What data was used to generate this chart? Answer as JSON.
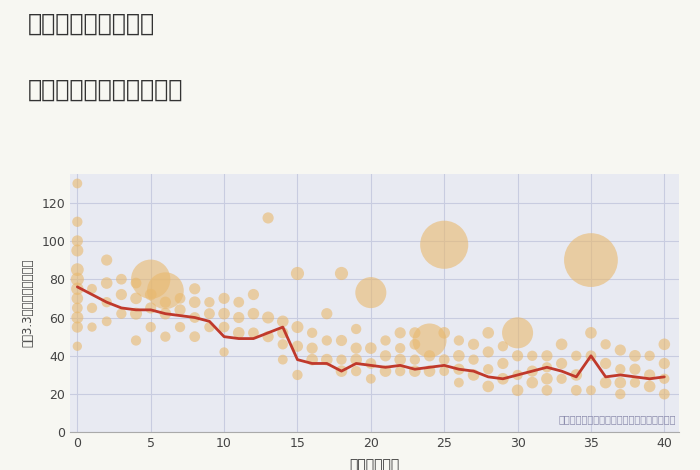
{
  "title_line1": "奈良県近鉄郡山駅の",
  "title_line2": "築年数別中古戸建て価格",
  "xlabel": "築年数（年）",
  "ylabel": "坪（3.3㎡）単価（万円）",
  "annotation": "円の大きさは、取引のあった物件面積を示す",
  "fig_bg_color": "#f7f7f2",
  "plot_bg_color": "#e8eaf2",
  "bubble_color": "#e8b86d",
  "bubble_alpha": 0.6,
  "line_color": "#c0392b",
  "line_width": 2.0,
  "xlim": [
    -0.5,
    41
  ],
  "ylim": [
    0,
    135
  ],
  "yticks": [
    0,
    20,
    40,
    60,
    80,
    100,
    120
  ],
  "xticks": [
    0,
    5,
    10,
    15,
    20,
    25,
    30,
    35,
    40
  ],
  "scatter_x": [
    0,
    0,
    0,
    0,
    0,
    0,
    0,
    0,
    0,
    0,
    0,
    0,
    1,
    1,
    1,
    2,
    2,
    2,
    2,
    3,
    3,
    3,
    4,
    4,
    4,
    4,
    5,
    5,
    5,
    5,
    6,
    6,
    6,
    6,
    7,
    7,
    7,
    8,
    8,
    8,
    8,
    9,
    9,
    9,
    10,
    10,
    10,
    10,
    11,
    11,
    11,
    12,
    12,
    12,
    13,
    13,
    13,
    14,
    14,
    14,
    14,
    15,
    15,
    15,
    15,
    16,
    16,
    16,
    17,
    17,
    17,
    18,
    18,
    18,
    18,
    19,
    19,
    19,
    19,
    20,
    20,
    20,
    20,
    21,
    21,
    21,
    22,
    22,
    22,
    22,
    23,
    23,
    23,
    23,
    24,
    24,
    24,
    25,
    25,
    25,
    25,
    26,
    26,
    26,
    26,
    27,
    27,
    27,
    28,
    28,
    28,
    28,
    29,
    29,
    29,
    30,
    30,
    30,
    30,
    31,
    31,
    31,
    32,
    32,
    32,
    32,
    33,
    33,
    33,
    34,
    34,
    34,
    35,
    35,
    35,
    35,
    36,
    36,
    36,
    37,
    37,
    37,
    37,
    38,
    38,
    38,
    39,
    39,
    39,
    40,
    40,
    40,
    40
  ],
  "scatter_y": [
    130,
    110,
    100,
    95,
    85,
    80,
    75,
    70,
    65,
    60,
    55,
    45,
    75,
    65,
    55,
    90,
    78,
    68,
    58,
    80,
    72,
    62,
    78,
    70,
    62,
    48,
    80,
    72,
    65,
    55,
    74,
    68,
    62,
    50,
    70,
    64,
    55,
    75,
    68,
    60,
    50,
    68,
    62,
    55,
    70,
    62,
    55,
    42,
    68,
    60,
    52,
    72,
    62,
    52,
    112,
    60,
    50,
    58,
    52,
    46,
    38,
    83,
    55,
    45,
    30,
    52,
    44,
    38,
    62,
    48,
    38,
    83,
    48,
    38,
    32,
    54,
    44,
    38,
    32,
    73,
    44,
    36,
    28,
    48,
    40,
    32,
    52,
    44,
    38,
    32,
    52,
    46,
    38,
    32,
    48,
    40,
    32,
    98,
    52,
    38,
    32,
    48,
    40,
    33,
    26,
    46,
    38,
    30,
    52,
    42,
    33,
    24,
    45,
    36,
    28,
    52,
    40,
    30,
    22,
    40,
    32,
    26,
    40,
    34,
    28,
    22,
    46,
    36,
    28,
    40,
    30,
    22,
    90,
    52,
    40,
    22,
    46,
    36,
    26,
    43,
    33,
    26,
    20,
    40,
    33,
    26,
    40,
    30,
    24,
    46,
    36,
    28,
    20
  ],
  "scatter_size": [
    50,
    55,
    65,
    75,
    85,
    90,
    80,
    70,
    60,
    75,
    65,
    45,
    50,
    55,
    45,
    65,
    70,
    55,
    50,
    60,
    65,
    55,
    60,
    70,
    75,
    55,
    800,
    70,
    65,
    55,
    700,
    65,
    70,
    55,
    60,
    65,
    55,
    65,
    70,
    60,
    60,
    55,
    62,
    55,
    65,
    70,
    60,
    45,
    60,
    65,
    70,
    65,
    70,
    60,
    65,
    75,
    65,
    70,
    65,
    55,
    50,
    90,
    75,
    65,
    55,
    55,
    65,
    70,
    65,
    55,
    70,
    90,
    65,
    55,
    70,
    55,
    65,
    70,
    55,
    500,
    70,
    60,
    50,
    55,
    65,
    70,
    65,
    55,
    70,
    55,
    65,
    60,
    55,
    70,
    600,
    65,
    70,
    1200,
    70,
    60,
    50,
    55,
    70,
    65,
    50,
    65,
    55,
    70,
    70,
    65,
    55,
    70,
    55,
    65,
    70,
    500,
    65,
    55,
    70,
    55,
    65,
    70,
    65,
    55,
    70,
    60,
    70,
    65,
    55,
    55,
    70,
    60,
    1500,
    70,
    60,
    50,
    55,
    65,
    70,
    65,
    55,
    70,
    55,
    70,
    65,
    55,
    55,
    65,
    70,
    70,
    65,
    55,
    60
  ],
  "line_x": [
    0,
    1,
    2,
    3,
    4,
    5,
    6,
    7,
    8,
    9,
    10,
    11,
    12,
    13,
    14,
    15,
    16,
    17,
    18,
    19,
    20,
    21,
    22,
    23,
    24,
    25,
    26,
    27,
    28,
    29,
    30,
    31,
    32,
    33,
    34,
    35,
    36,
    37,
    38,
    39,
    40
  ],
  "line_y": [
    76,
    72,
    68,
    65,
    64,
    64,
    62,
    61,
    60,
    58,
    50,
    49,
    49,
    52,
    55,
    38,
    36,
    36,
    32,
    36,
    35,
    34,
    35,
    33,
    34,
    35,
    33,
    32,
    29,
    28,
    30,
    32,
    34,
    32,
    29,
    40,
    29,
    30,
    29,
    28,
    29
  ]
}
